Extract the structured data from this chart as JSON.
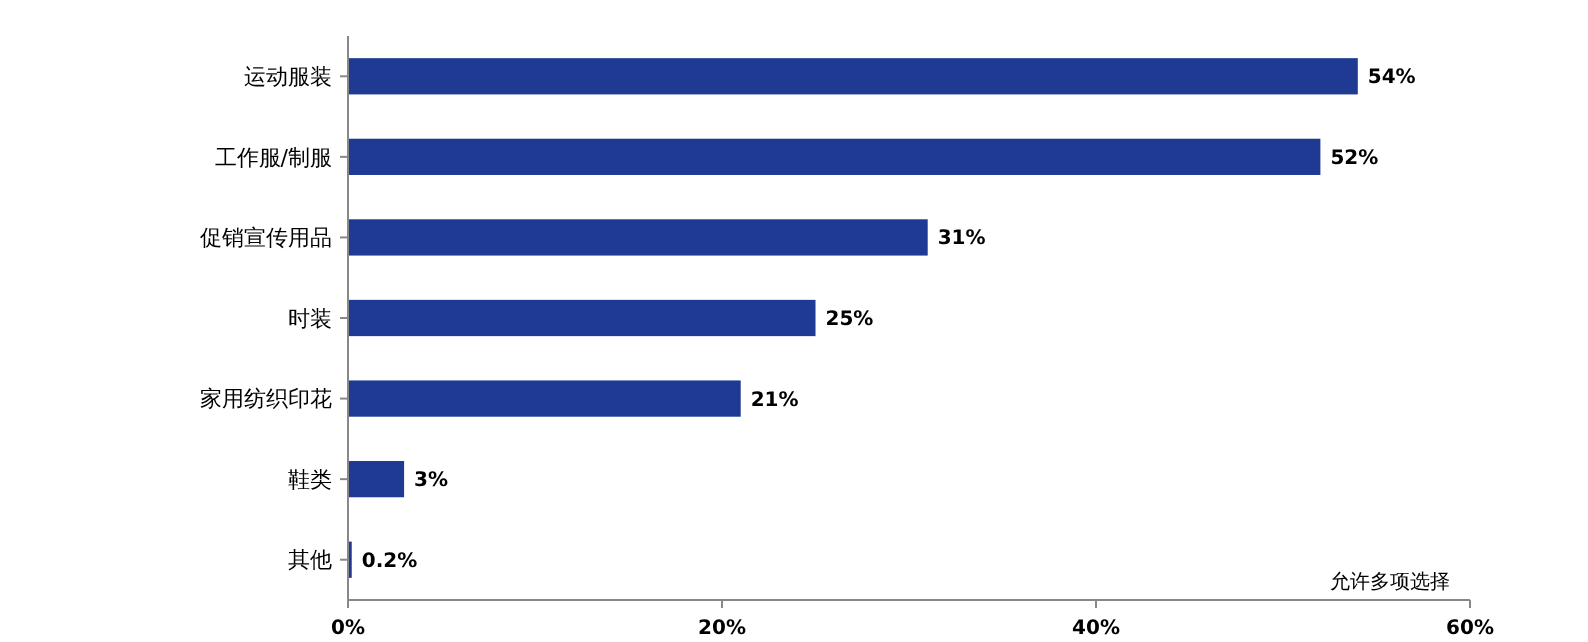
{
  "chart_data": {
    "type": "bar",
    "orientation": "horizontal",
    "categories": [
      "运动服装",
      "工作服/制服",
      "促销宣传用品",
      "时装",
      "家用纺织印花",
      "鞋类",
      "其他"
    ],
    "values": [
      54,
      52,
      31,
      25,
      21,
      3,
      0.2
    ],
    "value_labels": [
      "54%",
      "52%",
      "31%",
      "25%",
      "21%",
      "3%",
      "0.2%"
    ],
    "color": "#1f3a93",
    "xlim": [
      0,
      60
    ],
    "xticks": [
      {
        "value": 0,
        "label": "0%"
      },
      {
        "value": 20,
        "label": "20%"
      },
      {
        "value": 40,
        "label": "40%"
      },
      {
        "value": 60,
        "label": "60%"
      }
    ],
    "grid": false,
    "annotations": [
      "允许多项选择"
    ]
  }
}
